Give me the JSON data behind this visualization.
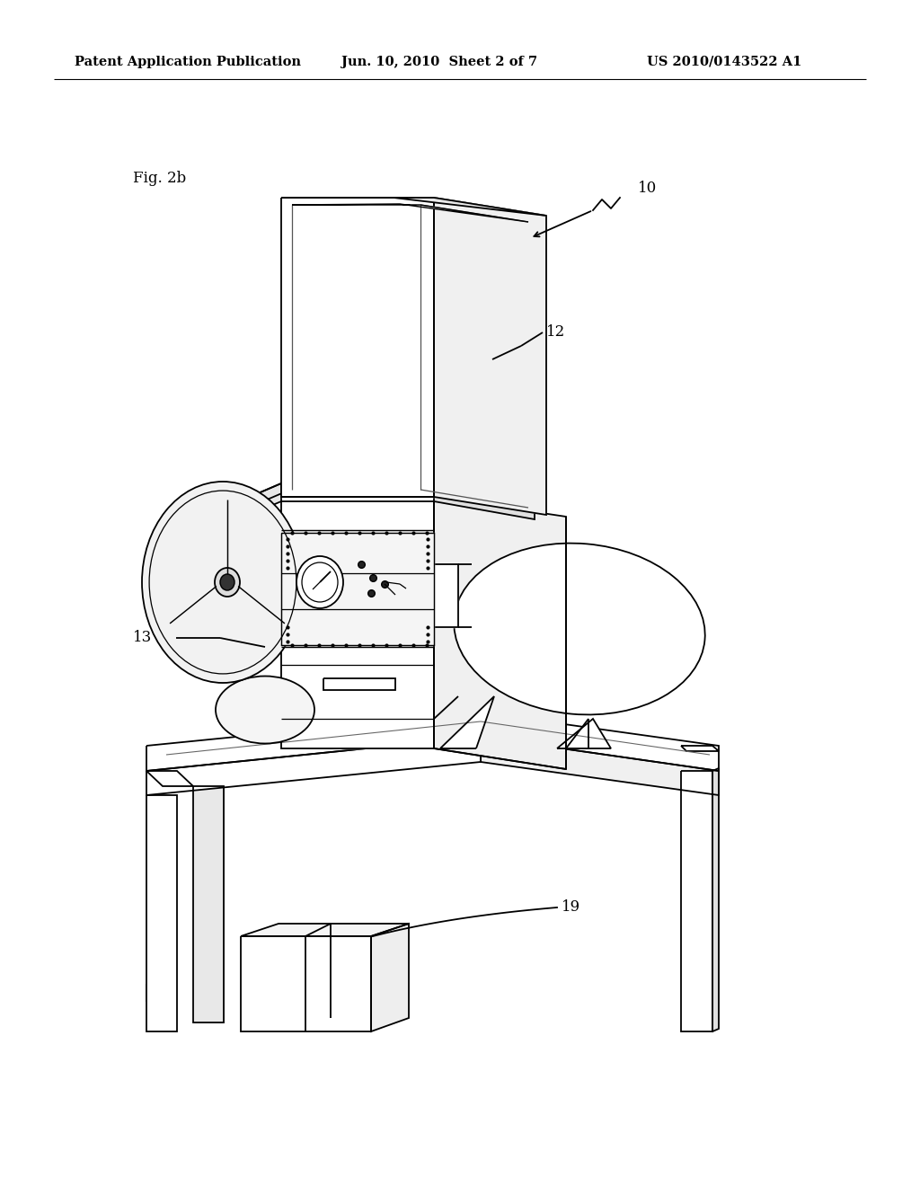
{
  "background_color": "#ffffff",
  "line_color": "#000000",
  "title_text": "Patent Application Publication",
  "title_date": "Jun. 10, 2010  Sheet 2 of 7",
  "title_patent": "US 2010/0143522 A1",
  "fig_label": "Fig. 2b",
  "label_10": "10",
  "label_12": "12",
  "label_13": "13",
  "label_19": "19",
  "lw": 1.3,
  "fig_width": 10.24,
  "fig_height": 13.2,
  "dpi": 100
}
